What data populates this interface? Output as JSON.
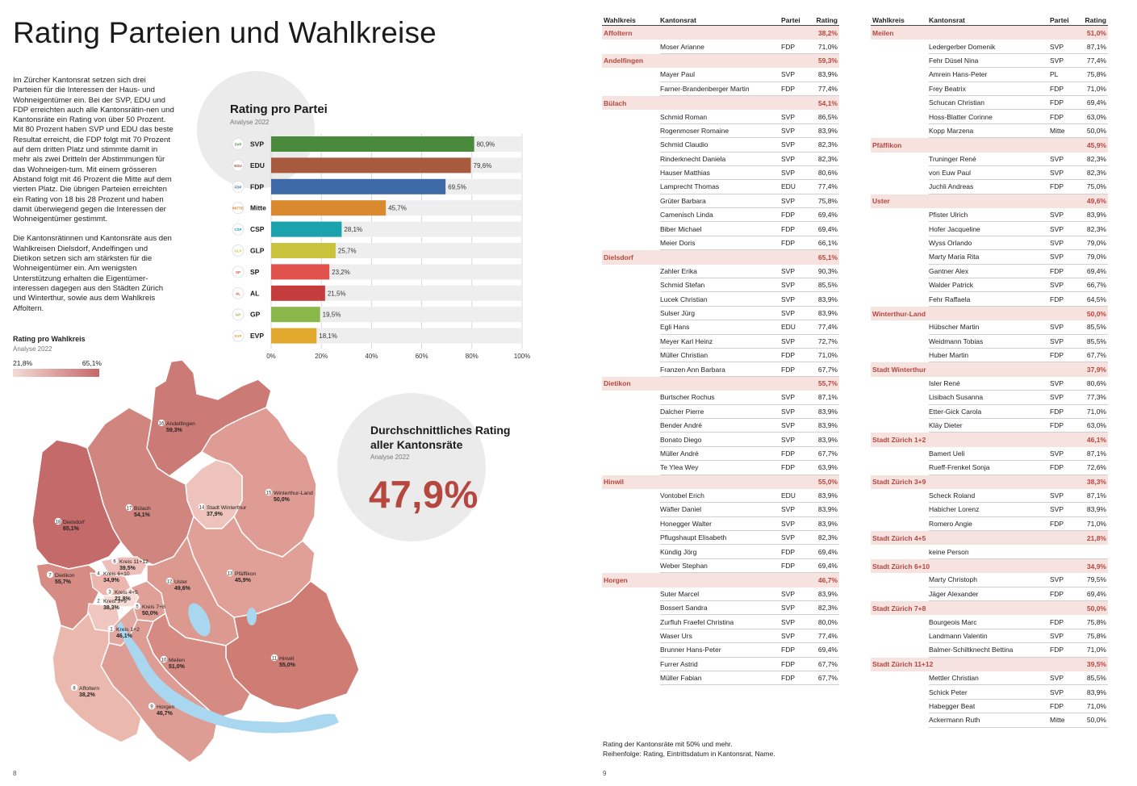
{
  "left_page": {
    "title": "Rating Parteien und Wahlkreise",
    "intro_paragraphs": [
      "Im Zürcher Kantonsrat setzen sich drei Parteien für die Interessen der Haus- und Wohneigentümer ein. Bei der SVP, EDU und FDP erreichten auch alle Kantonsrätin-nen und Kantonsräte ein Rating von über 50 Prozent. Mit 80 Prozent haben SVP und EDU das beste Resultat erreicht, die FDP folgt mit 70 Prozent auf dem dritten Platz und stimmte damit in mehr als zwei Dritteln der Abstimmungen für das Wohneigen-tum. Mit einem grösseren Abstand folgt mit 46 Prozent die Mitte auf dem vierten Platz. Die übrigen Parteien erreichten ein Rating von 18 bis 28 Prozent und haben damit überwiegend gegen die Interessen der Wohneigentümer gestimmt.",
      "Die Kantonsrätinnen und Kantonsräte aus den Wahlkreisen Dielsdorf, Andelfingen und Dietikon setzen sich am stärksten für die Wohneigentümer ein. Am wenigsten Unterstützung erhalten die Eigentümer-interessen dagegen aus den Städten Zürich und Winterthur, sowie aus dem Wahlkreis Affoltern."
    ],
    "map_legend": {
      "title": "Rating pro Wahlkreis",
      "subtitle": "Analyse 2022",
      "min_label": "21,8%",
      "max_label": "65,1%"
    },
    "average": {
      "title_line1": "Durchschnittliches Rating",
      "title_line2": "aller Kantonsräte",
      "subtitle": "Analyse 2022",
      "value": "47,9%"
    },
    "page_number": "8",
    "map_districts": [
      {
        "num": "1",
        "name": "Kreis 1+2",
        "value": "46,1%"
      },
      {
        "num": "2",
        "name": "Kreis 3+9",
        "value": "38,3%"
      },
      {
        "num": "3",
        "name": "Kreis 4+5",
        "value": "21,8%"
      },
      {
        "num": "4",
        "name": "Kreis 6+10",
        "value": "34,9%"
      },
      {
        "num": "5",
        "name": "Kreis 7+8",
        "value": "50,0%"
      },
      {
        "num": "6",
        "name": "Kreis 11+12",
        "value": "39,5%"
      },
      {
        "num": "7",
        "name": "Dietikon",
        "value": "55,7%"
      },
      {
        "num": "8",
        "name": "Affoltern",
        "value": "38,2%"
      },
      {
        "num": "9",
        "name": "Horgen",
        "value": "46,7%"
      },
      {
        "num": "10",
        "name": "Meilen",
        "value": "51,0%"
      },
      {
        "num": "11",
        "name": "Hinwil",
        "value": "55,0%"
      },
      {
        "num": "12",
        "name": "Uster",
        "value": "49,6%"
      },
      {
        "num": "13",
        "name": "Pfäffikon",
        "value": "45,9%"
      },
      {
        "num": "14",
        "name": "Stadt Winterthur",
        "value": "37,9%"
      },
      {
        "num": "15",
        "name": "Winterthur-Land",
        "value": "50,0%"
      },
      {
        "num": "16",
        "name": "Andelfingen",
        "value": "59,3%"
      },
      {
        "num": "17",
        "name": "Bülach",
        "value": "54,1%"
      },
      {
        "num": "18",
        "name": "Dielsdorf",
        "value": "65,1%"
      }
    ]
  },
  "chart_data": {
    "type": "bar",
    "orientation": "horizontal",
    "title": "Rating pro Partei",
    "subtitle": "Analyse 2022",
    "categories": [
      "SVP",
      "EDU",
      "FDP",
      "Mitte",
      "CSP",
      "GLP",
      "SP",
      "AL",
      "GP",
      "EVP"
    ],
    "values": [
      80.9,
      79.6,
      69.5,
      45.7,
      28.1,
      25.7,
      23.2,
      21.5,
      19.5,
      18.1
    ],
    "value_labels": [
      "80,9%",
      "79,6%",
      "69,5%",
      "45,7%",
      "28,1%",
      "25,7%",
      "23,2%",
      "21,5%",
      "19,5%",
      "18,1%"
    ],
    "colors": [
      "#4a8a3c",
      "#a85a3e",
      "#3d6aa6",
      "#d98a2f",
      "#1ba3ad",
      "#c9c33e",
      "#e0524b",
      "#c43c3c",
      "#8ab84a",
      "#e0a92d"
    ],
    "x_ticks": [
      "0%",
      "20%",
      "40%",
      "60%",
      "80%",
      "100%"
    ],
    "xlim": [
      0,
      100
    ],
    "logo_labels": [
      "SVP",
      "EDU",
      "FDP",
      "MITTE",
      "CSP",
      "GLP",
      "SP",
      "AL",
      "GP",
      "EVP"
    ]
  },
  "right_page": {
    "headers": {
      "wahlkreis": "Wahlkreis",
      "kantonsrat": "Kantonsrat",
      "partei": "Partei",
      "rating": "Rating"
    },
    "left_table": [
      {
        "district": "Affoltern",
        "rating": "38,2%",
        "members": [
          [
            "Moser Arianne",
            "FDP",
            "71,0%"
          ]
        ]
      },
      {
        "district": "Andelfingen",
        "rating": "59,3%",
        "members": [
          [
            "Mayer Paul",
            "SVP",
            "83,9%"
          ],
          [
            "Farner-Brandenberger Martin",
            "FDP",
            "77,4%"
          ]
        ]
      },
      {
        "district": "Bülach",
        "rating": "54,1%",
        "members": [
          [
            "Schmid Roman",
            "SVP",
            "86,5%"
          ],
          [
            "Rogenmoser Romaine",
            "SVP",
            "83,9%"
          ],
          [
            "Schmid Claudio",
            "SVP",
            "82,3%"
          ],
          [
            "Rinderknecht Daniela",
            "SVP",
            "82,3%"
          ],
          [
            "Hauser Matthias",
            "SVP",
            "80,6%"
          ],
          [
            "Lamprecht Thomas",
            "EDU",
            "77,4%"
          ],
          [
            "Grüter Barbara",
            "SVP",
            "75,8%"
          ],
          [
            "Camenisch Linda",
            "FDP",
            "69,4%"
          ],
          [
            "Biber Michael",
            "FDP",
            "69,4%"
          ],
          [
            "Meier Doris",
            "FDP",
            "66,1%"
          ]
        ]
      },
      {
        "district": "Dielsdorf",
        "rating": "65,1%",
        "members": [
          [
            "Zahler Erika",
            "SVP",
            "90,3%"
          ],
          [
            "Schmid Stefan",
            "SVP",
            "85,5%"
          ],
          [
            "Lucek Christian",
            "SVP",
            "83,9%"
          ],
          [
            "Sulser Jürg",
            "SVP",
            "83,9%"
          ],
          [
            "Egli Hans",
            "EDU",
            "77,4%"
          ],
          [
            "Meyer Karl Heinz",
            "SVP",
            "72,7%"
          ],
          [
            "Müller Christian",
            "FDP",
            "71,0%"
          ],
          [
            "Franzen Ann Barbara",
            "FDP",
            "67,7%"
          ]
        ]
      },
      {
        "district": "Dietikon",
        "rating": "55,7%",
        "members": [
          [
            "Burtscher Rochus",
            "SVP",
            "87,1%"
          ],
          [
            "Dalcher Pierre",
            "SVP",
            "83,9%"
          ],
          [
            "Bender André",
            "SVP",
            "83,9%"
          ],
          [
            "Bonato Diego",
            "SVP",
            "83,9%"
          ],
          [
            "Müller André",
            "FDP",
            "67,7%"
          ],
          [
            "Te Ylea Wey",
            "FDP",
            "63,9%"
          ]
        ]
      },
      {
        "district": "Hinwil",
        "rating": "55,0%",
        "members": [
          [
            "Vontobel Erich",
            "EDU",
            "83,9%"
          ],
          [
            "Wäfler Daniel",
            "SVP",
            "83,9%"
          ],
          [
            "Honegger Walter",
            "SVP",
            "83,9%"
          ],
          [
            "Pflugshaupt Elisabeth",
            "SVP",
            "82,3%"
          ],
          [
            "Kündig Jörg",
            "FDP",
            "69,4%"
          ],
          [
            "Weber Stephan",
            "FDP",
            "69,4%"
          ]
        ]
      },
      {
        "district": "Horgen",
        "rating": "46,7%",
        "members": [
          [
            "Suter Marcel",
            "SVP",
            "83,9%"
          ],
          [
            "Bossert Sandra",
            "SVP",
            "82,3%"
          ],
          [
            "Zurfluh Fraefel Christina",
            "SVP",
            "80,0%"
          ],
          [
            "Waser Urs",
            "SVP",
            "77,4%"
          ],
          [
            "Brunner Hans-Peter",
            "FDP",
            "69,4%"
          ],
          [
            "Furrer Astrid",
            "FDP",
            "67,7%"
          ],
          [
            "Müller Fabian",
            "FDP",
            "67,7%"
          ]
        ]
      }
    ],
    "right_table": [
      {
        "district": "Meilen",
        "rating": "51,0%",
        "members": [
          [
            "Ledergerber Domenik",
            "SVP",
            "87,1%"
          ],
          [
            "Fehr Düsel Nina",
            "SVP",
            "77,4%"
          ],
          [
            "Amrein Hans-Peter",
            "PL",
            "75,8%"
          ],
          [
            "Frey Beatrix",
            "FDP",
            "71,0%"
          ],
          [
            "Schucan Christian",
            "FDP",
            "69,4%"
          ],
          [
            "Hoss-Blatter Corinne",
            "FDP",
            "63,0%"
          ],
          [
            "Kopp Marzena",
            "Mitte",
            "50,0%"
          ]
        ]
      },
      {
        "district": "Pfäffikon",
        "rating": "45,9%",
        "members": [
          [
            "Truninger René",
            "SVP",
            "82,3%"
          ],
          [
            "von Euw Paul",
            "SVP",
            "82,3%"
          ],
          [
            "Juchli Andreas",
            "FDP",
            "75,0%"
          ]
        ]
      },
      {
        "district": "Uster",
        "rating": "49,6%",
        "members": [
          [
            "Pfister Ulrich",
            "SVP",
            "83,9%"
          ],
          [
            "Hofer Jacqueline",
            "SVP",
            "82,3%"
          ],
          [
            "Wyss Orlando",
            "SVP",
            "79,0%"
          ],
          [
            "Marty Maria Rita",
            "SVP",
            "79,0%"
          ],
          [
            "Gantner Alex",
            "FDP",
            "69,4%"
          ],
          [
            "Walder Patrick",
            "SVP",
            "66,7%"
          ],
          [
            "Fehr Raffaela",
            "FDP",
            "64,5%"
          ]
        ]
      },
      {
        "district": "Winterthur-Land",
        "rating": "50,0%",
        "members": [
          [
            "Hübscher Martin",
            "SVP",
            "85,5%"
          ],
          [
            "Weidmann Tobias",
            "SVP",
            "85,5%"
          ],
          [
            "Huber Martin",
            "FDP",
            "67,7%"
          ]
        ]
      },
      {
        "district": "Stadt Winterthur",
        "rating": "37,9%",
        "members": [
          [
            "Isler René",
            "SVP",
            "80,6%"
          ],
          [
            "Lisibach Susanna",
            "SVP",
            "77,3%"
          ],
          [
            "Etter-Gick Carola",
            "FDP",
            "71,0%"
          ],
          [
            "Kläy Dieter",
            "FDP",
            "63,0%"
          ]
        ]
      },
      {
        "district": "Stadt Zürich 1+2",
        "rating": "46,1%",
        "members": [
          [
            "Bamert Ueli",
            "SVP",
            "87,1%"
          ],
          [
            "Rueff-Frenkel Sonja",
            "FDP",
            "72,6%"
          ]
        ]
      },
      {
        "district": "Stadt Zürich 3+9",
        "rating": "38,3%",
        "members": [
          [
            "Scheck Roland",
            "SVP",
            "87,1%"
          ],
          [
            "Habicher Lorenz",
            "SVP",
            "83,9%"
          ],
          [
            "Romero Angie",
            "FDP",
            "71,0%"
          ]
        ]
      },
      {
        "district": "Stadt Zürich 4+5",
        "rating": "21,8%",
        "members": [
          [
            "keine Person",
            "",
            ""
          ]
        ]
      },
      {
        "district": "Stadt Zürich 6+10",
        "rating": "34,9%",
        "members": [
          [
            "Marty Christoph",
            "SVP",
            "79,5%"
          ],
          [
            "Jäger Alexander",
            "FDP",
            "69,4%"
          ]
        ]
      },
      {
        "district": "Stadt Zürich 7+8",
        "rating": "50,0%",
        "members": [
          [
            "Bourgeois Marc",
            "FDP",
            "75,8%"
          ],
          [
            "Landmann Valentin",
            "SVP",
            "75,8%"
          ],
          [
            "Balmer-Schiltknecht Bettina",
            "FDP",
            "71,0%"
          ]
        ]
      },
      {
        "district": "Stadt Zürich 11+12",
        "rating": "39,5%",
        "members": [
          [
            "Mettler Christian",
            "SVP",
            "85,5%"
          ],
          [
            "Schick Peter",
            "SVP",
            "83,9%"
          ],
          [
            "Habegger Beat",
            "FDP",
            "71,0%"
          ],
          [
            "Ackermann Ruth",
            "Mitte",
            "50,0%"
          ]
        ]
      }
    ],
    "footnote_line1": "Rating der Kantonsräte mit 50% und mehr.",
    "footnote_line2": "Reihenfolge: Rating, Eintrittsdatum in Kantonsrat, Name.",
    "page_number": "9"
  }
}
